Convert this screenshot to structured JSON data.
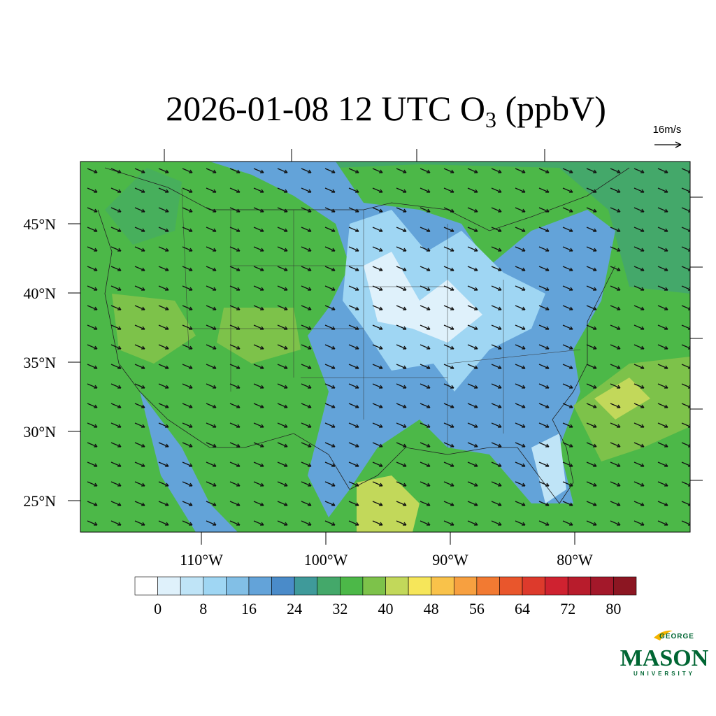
{
  "map": {
    "title": {
      "main": "2026-01-08 12 UTC O",
      "subscript": "3",
      "unit": "(ppbV)"
    },
    "vector_scale": "16m/s",
    "lat_ticks": [
      {
        "value": 45,
        "label": "45°N"
      },
      {
        "value": 40,
        "label": "40°N"
      },
      {
        "value": 35,
        "label": "35°N"
      },
      {
        "value": 30,
        "label": "30°N"
      },
      {
        "value": 25,
        "label": "25°N"
      }
    ],
    "lon_ticks": [
      {
        "value": -110,
        "label": "110°W"
      },
      {
        "value": -100,
        "label": "100°W"
      },
      {
        "value": -90,
        "label": "90°W"
      },
      {
        "value": -80,
        "label": "80°W"
      }
    ],
    "colorbar": {
      "ticks": [
        0,
        8,
        16,
        24,
        32,
        40,
        48,
        56,
        64,
        72,
        80
      ],
      "colors": [
        "#ffffff",
        "#dff1fb",
        "#bfe4f7",
        "#9fd6f3",
        "#82bfe6",
        "#63a3d9",
        "#4a8bc9",
        "#3f9a9a",
        "#44a86a",
        "#4cb848",
        "#7dc24a",
        "#c2d85a",
        "#f6e65a",
        "#f9c24a",
        "#f7a040",
        "#f27a32",
        "#e9562c",
        "#dd3a2c",
        "#cf2230",
        "#b81c2c",
        "#a3182a",
        "#8c1622"
      ]
    },
    "logo": {
      "top": "GEORGE",
      "main": "MASON",
      "bottom": "UNIVERSITY"
    }
  }
}
